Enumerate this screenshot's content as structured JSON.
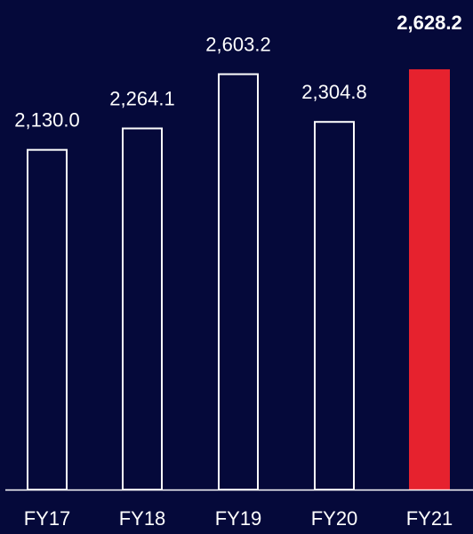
{
  "chart_data": {
    "type": "bar",
    "categories": [
      "FY17",
      "FY18",
      "FY19",
      "FY20",
      "FY21"
    ],
    "values": [
      2130.0,
      2264.1,
      2603.2,
      2304.8,
      2628.2
    ],
    "value_labels": [
      "2,130.0",
      "2,264.1",
      "2,603.2",
      "2,304.8",
      "2,628.2"
    ],
    "highlight_index": 4,
    "title": "",
    "xlabel": "",
    "ylabel": "",
    "ylim": [
      0,
      2628.2
    ],
    "grid": false,
    "legend": "none"
  },
  "colors": {
    "background": "#05093a",
    "outline": "#ffffff",
    "highlight": "#e6222e",
    "text": "#ffffff"
  }
}
